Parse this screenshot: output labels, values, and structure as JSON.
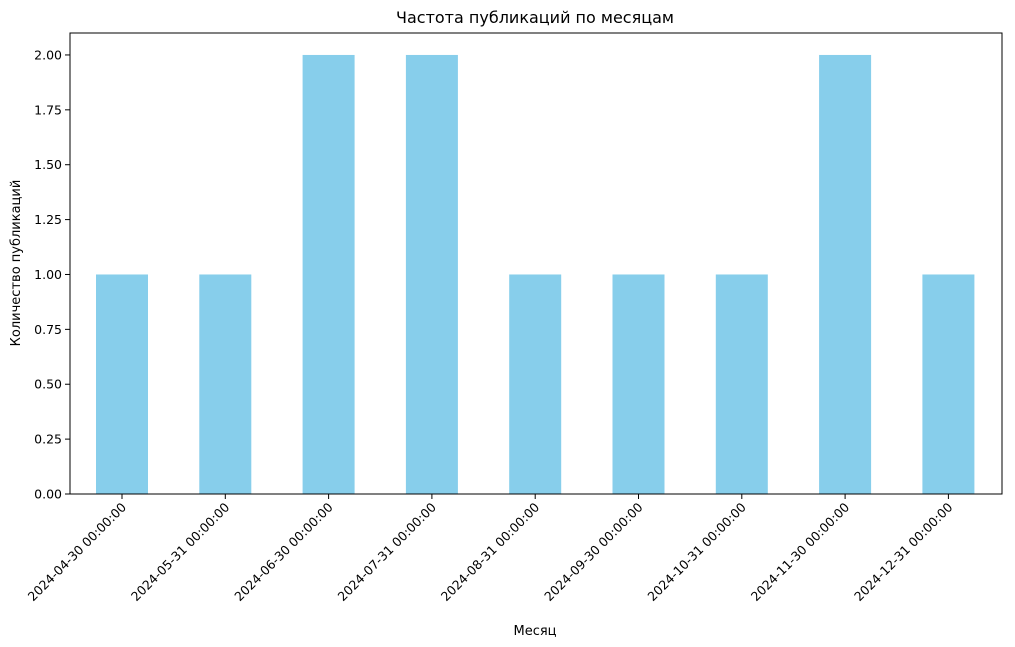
{
  "chart_data": {
    "type": "bar",
    "title": "Частота публикаций по месяцам",
    "xlabel": "Месяц",
    "ylabel": "Количество публикаций",
    "categories": [
      "2024-04-30 00:00:00",
      "2024-05-31 00:00:00",
      "2024-06-30 00:00:00",
      "2024-07-31 00:00:00",
      "2024-08-31 00:00:00",
      "2024-09-30 00:00:00",
      "2024-10-31 00:00:00",
      "2024-11-30 00:00:00",
      "2024-12-31 00:00:00"
    ],
    "values": [
      1,
      1,
      2,
      2,
      1,
      1,
      1,
      2,
      1
    ],
    "ylim": [
      0,
      2.1
    ],
    "yticks": [
      "0.00",
      "0.25",
      "0.50",
      "0.75",
      "1.00",
      "1.25",
      "1.50",
      "1.75",
      "2.00"
    ],
    "bar_color": "#87ceeb",
    "grid": false,
    "legend": "none"
  }
}
